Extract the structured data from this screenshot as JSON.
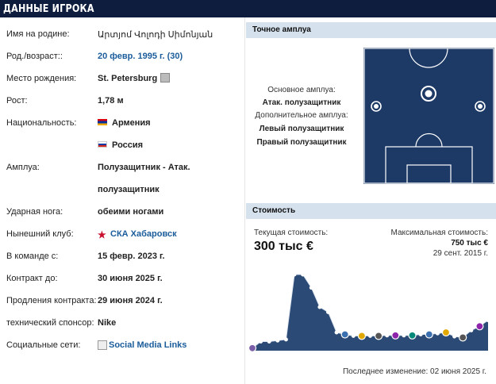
{
  "header": {
    "title": "ДАННЫЕ ИГРОКА"
  },
  "details": [
    {
      "label": "Имя на родине:",
      "value": "Արտյոմ Վոլոդի Սիմոնյան"
    },
    {
      "label": "Род./возраст::",
      "value": "20 февр. 1995 г. (30)"
    },
    {
      "label": "Место рождения:",
      "value": "St. Petersburg"
    },
    {
      "label": "Рост:",
      "value": "1,78 м"
    },
    {
      "label": "Национальность:",
      "value": "Армения",
      "value2": "Россия"
    },
    {
      "label": "Амплуа:",
      "value": "Полузащитник - Атак.",
      "value2": "полузащитник"
    },
    {
      "label": "Ударная нога:",
      "value": "обеими ногами"
    },
    {
      "label": "Нынешний клуб:",
      "value": "СКА Хабаровск"
    },
    {
      "label": "В команде с:",
      "value": "15 февр. 2023 г."
    },
    {
      "label": "Контракт до:",
      "value": "30 июня 2025 г."
    },
    {
      "label": "Продления контракта:",
      "value": "29 июня 2024 г."
    },
    {
      "label": "технический спонсор:",
      "value": "Nike"
    },
    {
      "label": "Социальные сети:",
      "value": "Social Media Links"
    }
  ],
  "position": {
    "header": "Точное амплуа",
    "main_label": "Основное амплуа:",
    "main": "Атак. полузащитник",
    "other_label": "Дополнительное амплуа:",
    "other": [
      "Левый полузащитник",
      "Правый полузащитник"
    ]
  },
  "value": {
    "header": "Стоимость",
    "current_label": "Текущая стоимость:",
    "current": "300 тыс €",
    "max_label": "Максимальная стоимость:",
    "max": "750 тыс €",
    "max_date": "29 сент. 2015 г.",
    "last_change": "Последнее изменение: 02 июня 2025 г."
  },
  "colors": {
    "header_bg": "#0e1d3d",
    "section_bg": "#d5e1ed",
    "pitch": "#1d3a66",
    "chart_fill": "#2b4a75",
    "link": "#1a5c9a"
  },
  "chart_data": {
    "type": "area",
    "values": [
      25,
      90,
      90,
      100,
      110,
      750,
      750,
      620,
      430,
      380,
      180,
      160,
      145,
      145,
      145,
      145,
      150,
      150,
      150,
      150,
      160,
      160,
      170,
      180,
      140,
      130,
      200,
      240,
      300
    ]
  }
}
